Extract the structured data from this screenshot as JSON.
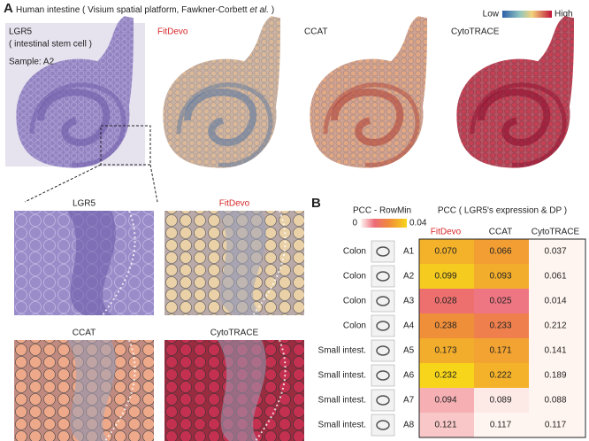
{
  "panel_a": {
    "label": "A",
    "title": {
      "before": "Human intestine ( Visium spatial platform, Fawkner-Corbett ",
      "italic": "et al.",
      "after": " )"
    },
    "colorbar": {
      "low": "Low",
      "high": "High"
    },
    "images": [
      {
        "title": "LGR5",
        "subtitle": "( intestinal stem cell )",
        "sample": "Sample: A2"
      },
      {
        "title": "FitDevo"
      },
      {
        "title": "CCAT"
      },
      {
        "title": "CytoTRACE"
      }
    ],
    "zoom_titles": [
      "LGR5",
      "FitDevo",
      "CCAT",
      "CytoTRACE"
    ]
  },
  "panel_b": {
    "label": "B",
    "legend_title": "PCC - RowMin",
    "legend_min": 0,
    "legend_max": 0.04,
    "table_title": "PCC ( LGR5's expression & DP )",
    "columns": [
      "FitDevo",
      "CCAT",
      "CytoTRACE"
    ],
    "rows": [
      {
        "tissue": "Colon",
        "sample": "A1",
        "values": [
          "0.070",
          "0.066",
          "0.037"
        ]
      },
      {
        "tissue": "Colon",
        "sample": "A2",
        "values": [
          "0.099",
          "0.093",
          "0.061"
        ]
      },
      {
        "tissue": "Colon",
        "sample": "A3",
        "values": [
          "0.028",
          "0.025",
          "0.014"
        ]
      },
      {
        "tissue": "Colon",
        "sample": "A4",
        "values": [
          "0.238",
          "0.233",
          "0.212"
        ]
      },
      {
        "tissue": "Small intest.",
        "sample": "A5",
        "values": [
          "0.173",
          "0.171",
          "0.141"
        ]
      },
      {
        "tissue": "Small intest.",
        "sample": "A6",
        "values": [
          "0.232",
          "0.222",
          "0.189"
        ]
      },
      {
        "tissue": "Small intest.",
        "sample": "A7",
        "values": [
          "0.094",
          "0.089",
          "0.088"
        ]
      },
      {
        "tissue": "Small intest.",
        "sample": "A8",
        "values": [
          "0.121",
          "0.117",
          "0.117"
        ]
      }
    ]
  }
}
